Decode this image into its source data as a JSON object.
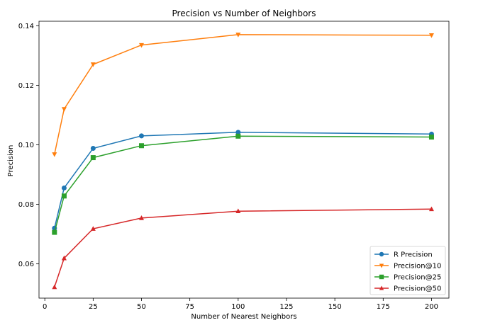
{
  "chart_data": {
    "type": "line",
    "title": "Precision vs Number of Neighbors",
    "xlabel": "Number of Nearest Neighbors",
    "ylabel": "Precision",
    "x": [
      5,
      10,
      25,
      50,
      100,
      200
    ],
    "xlim": [
      -3,
      209
    ],
    "ylim": [
      0.0485,
      0.1415
    ],
    "xticks": [
      0,
      25,
      50,
      75,
      100,
      125,
      150,
      175,
      200
    ],
    "xtick_labels": [
      "0",
      "25",
      "50",
      "75",
      "100",
      "125",
      "150",
      "175",
      "200"
    ],
    "yticks": [
      0.06,
      0.08,
      0.1,
      0.12,
      0.14
    ],
    "ytick_labels": [
      "0.06",
      "0.08",
      "0.10",
      "0.12",
      "0.14"
    ],
    "grid": false,
    "legend_position": "lower-right",
    "series": [
      {
        "name": "R Precision",
        "values": [
          0.072,
          0.0855,
          0.0988,
          0.103,
          0.1042,
          0.1036
        ],
        "color": "#1f77b4",
        "marker": "circle"
      },
      {
        "name": "Precision@10",
        "values": [
          0.0968,
          0.112,
          0.127,
          0.1335,
          0.137,
          0.1368
        ],
        "color": "#ff7f0e",
        "marker": "triangle-down"
      },
      {
        "name": "Precision@25",
        "values": [
          0.0706,
          0.0828,
          0.0957,
          0.0997,
          0.1029,
          0.1026
        ],
        "color": "#2ca02c",
        "marker": "square"
      },
      {
        "name": "Precision@50",
        "values": [
          0.0522,
          0.0619,
          0.0718,
          0.0754,
          0.0777,
          0.0784
        ],
        "color": "#d62728",
        "marker": "triangle-up"
      }
    ]
  }
}
